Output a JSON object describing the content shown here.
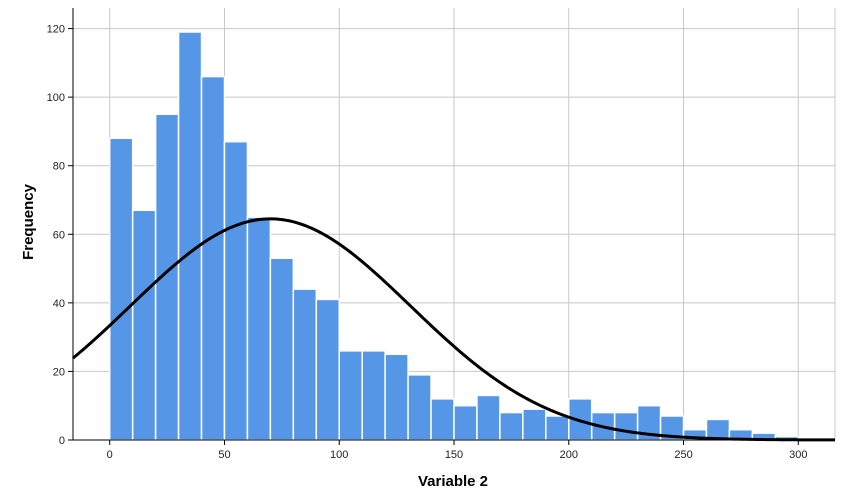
{
  "chart_data": {
    "type": "bar",
    "title": "",
    "xlabel": "Variable 2",
    "ylabel": "Frequency",
    "xlim": [
      -16,
      316
    ],
    "ylim": [
      0,
      126
    ],
    "x_ticks": [
      0,
      50,
      100,
      150,
      200,
      250,
      300
    ],
    "y_ticks": [
      0,
      20,
      40,
      60,
      80,
      100,
      120
    ],
    "grid": true,
    "bin_width": 10,
    "bins": [
      {
        "start": 0,
        "end": 10,
        "count": 88
      },
      {
        "start": 10,
        "end": 20,
        "count": 67
      },
      {
        "start": 20,
        "end": 30,
        "count": 95
      },
      {
        "start": 30,
        "end": 40,
        "count": 119
      },
      {
        "start": 40,
        "end": 50,
        "count": 106
      },
      {
        "start": 50,
        "end": 60,
        "count": 87
      },
      {
        "start": 60,
        "end": 70,
        "count": 65
      },
      {
        "start": 70,
        "end": 80,
        "count": 53
      },
      {
        "start": 80,
        "end": 90,
        "count": 44
      },
      {
        "start": 90,
        "end": 100,
        "count": 41
      },
      {
        "start": 100,
        "end": 110,
        "count": 26
      },
      {
        "start": 110,
        "end": 120,
        "count": 26
      },
      {
        "start": 120,
        "end": 130,
        "count": 25
      },
      {
        "start": 130,
        "end": 140,
        "count": 19
      },
      {
        "start": 140,
        "end": 150,
        "count": 12
      },
      {
        "start": 150,
        "end": 160,
        "count": 10
      },
      {
        "start": 160,
        "end": 170,
        "count": 13
      },
      {
        "start": 170,
        "end": 180,
        "count": 8
      },
      {
        "start": 180,
        "end": 190,
        "count": 9
      },
      {
        "start": 190,
        "end": 200,
        "count": 7
      },
      {
        "start": 200,
        "end": 210,
        "count": 12
      },
      {
        "start": 210,
        "end": 220,
        "count": 8
      },
      {
        "start": 220,
        "end": 230,
        "count": 8
      },
      {
        "start": 230,
        "end": 240,
        "count": 10
      },
      {
        "start": 240,
        "end": 250,
        "count": 7
      },
      {
        "start": 250,
        "end": 260,
        "count": 3
      },
      {
        "start": 260,
        "end": 270,
        "count": 6
      },
      {
        "start": 270,
        "end": 280,
        "count": 3
      },
      {
        "start": 280,
        "end": 290,
        "count": 2
      },
      {
        "start": 290,
        "end": 300,
        "count": 1
      }
    ],
    "normal_curve": {
      "mean": 70,
      "std_dev": 61,
      "peak": 64.5
    },
    "colors": {
      "bar_fill": "#5596e6",
      "bar_edge": "#ffffff",
      "curve": "#000000",
      "grid": "#c8c8c8",
      "background": "#ffffff"
    }
  }
}
